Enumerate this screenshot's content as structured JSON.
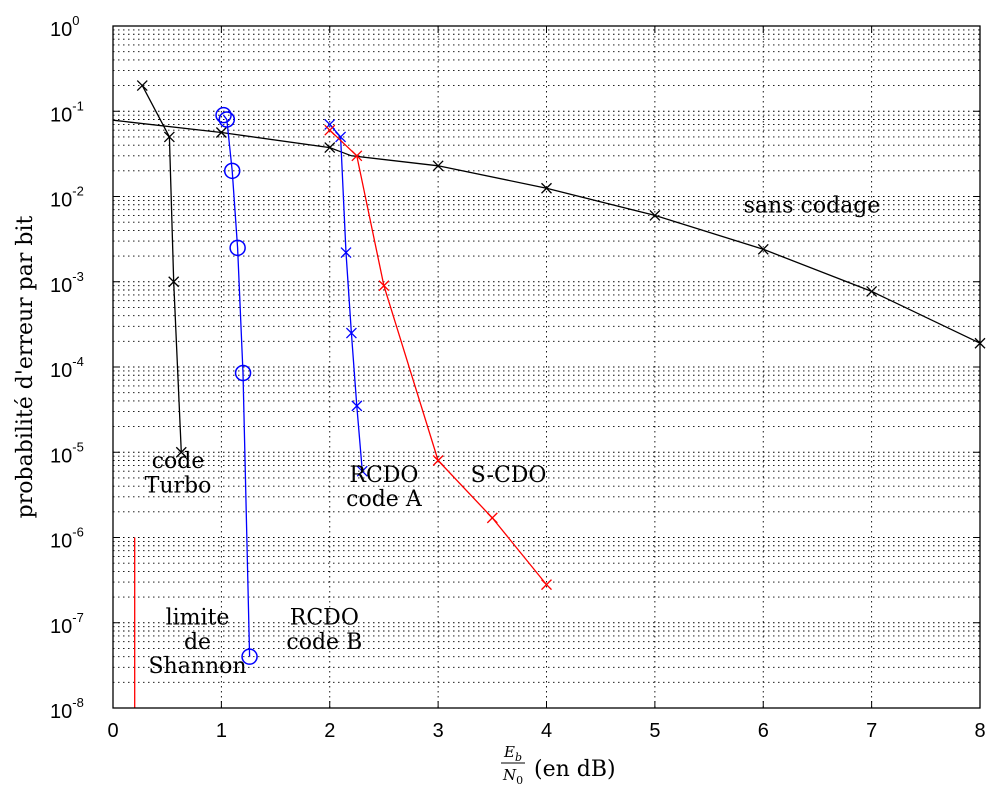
{
  "chart_data": {
    "type": "line",
    "xlabel": {
      "numerator": "E",
      "numerator_sub": "b",
      "denominator": "N",
      "denominator_sub": "0",
      "suffix": "(en dB)"
    },
    "ylabel": "probabilité d'erreur par bit",
    "x_range": [
      0,
      8
    ],
    "y_range": [
      1e-08,
      1
    ],
    "y_scale": "log",
    "grid": true,
    "x_ticks": [
      "0",
      "1",
      "2",
      "3",
      "4",
      "5",
      "6",
      "7",
      "8"
    ],
    "y_ticks": [
      {
        "base": "10",
        "exp": "0"
      },
      {
        "base": "10",
        "exp": "-1"
      },
      {
        "base": "10",
        "exp": "-2"
      },
      {
        "base": "10",
        "exp": "-3"
      },
      {
        "base": "10",
        "exp": "-4"
      },
      {
        "base": "10",
        "exp": "-5"
      },
      {
        "base": "10",
        "exp": "-6"
      },
      {
        "base": "10",
        "exp": "-7"
      },
      {
        "base": "10",
        "exp": "-8"
      }
    ],
    "series": [
      {
        "color": "#000000",
        "marker": "x",
        "x": [
          0,
          1,
          2,
          2.2,
          3,
          4,
          5,
          6,
          7,
          8
        ],
        "y": [
          0.0786,
          0.0563,
          0.0375,
          0.03,
          0.0229,
          0.0125,
          0.006,
          0.0024,
          0.00077,
          0.00019
        ],
        "marker_x": [
          1,
          2,
          3,
          4,
          5,
          6,
          7,
          8
        ],
        "marker_y": [
          0.0563,
          0.0375,
          0.0229,
          0.0125,
          0.006,
          0.0024,
          0.00077,
          0.00019
        ]
      },
      {
        "color": "#000000",
        "marker": "x",
        "x": [
          0.27,
          0.52,
          0.56,
          0.63
        ],
        "y": [
          0.2,
          0.05,
          0.001,
          1e-05
        ]
      },
      {
        "color": "#0000ff",
        "marker": "o",
        "x": [
          1.02,
          1.05,
          1.1,
          1.15,
          1.2,
          1.26
        ],
        "y": [
          0.09,
          0.08,
          0.02,
          0.0025,
          8.5e-05,
          4e-08
        ]
      },
      {
        "color": "#0000ff",
        "marker": "x",
        "x": [
          2.0,
          2.1,
          2.15,
          2.2,
          2.25,
          2.3
        ],
        "y": [
          0.07,
          0.05,
          0.0022,
          0.00025,
          3.5e-05,
          6e-06
        ]
      },
      {
        "color": "#ff0000",
        "marker": "x",
        "x": [
          2.0,
          2.25,
          2.5,
          3.0,
          3.5,
          4.0
        ],
        "y": [
          0.06,
          0.03,
          0.0009,
          8e-06,
          1.7e-06,
          2.8e-07
        ]
      },
      {
        "color": "#ff0000",
        "marker": "none",
        "x": [
          0.2,
          0.2
        ],
        "y": [
          1e-06,
          1e-08
        ]
      }
    ],
    "annotations": [
      {
        "lines": [
          "sans codage"
        ],
        "x": 6.45,
        "y": 0.0065
      },
      {
        "lines": [
          "code",
          "Turbo"
        ],
        "x": 0.6,
        "y": 6.5e-06
      },
      {
        "lines": [
          "RCDO",
          "code A"
        ],
        "x": 2.5,
        "y": 4.5e-06
      },
      {
        "lines": [
          "S-CDO"
        ],
        "x": 3.65,
        "y": 4.5e-06
      },
      {
        "lines": [
          "RCDO",
          "code B"
        ],
        "x": 1.95,
        "y": 9.5e-08
      },
      {
        "lines": [
          "limite",
          "de",
          "Shannon"
        ],
        "x": 0.78,
        "y": 9.5e-08
      }
    ]
  }
}
